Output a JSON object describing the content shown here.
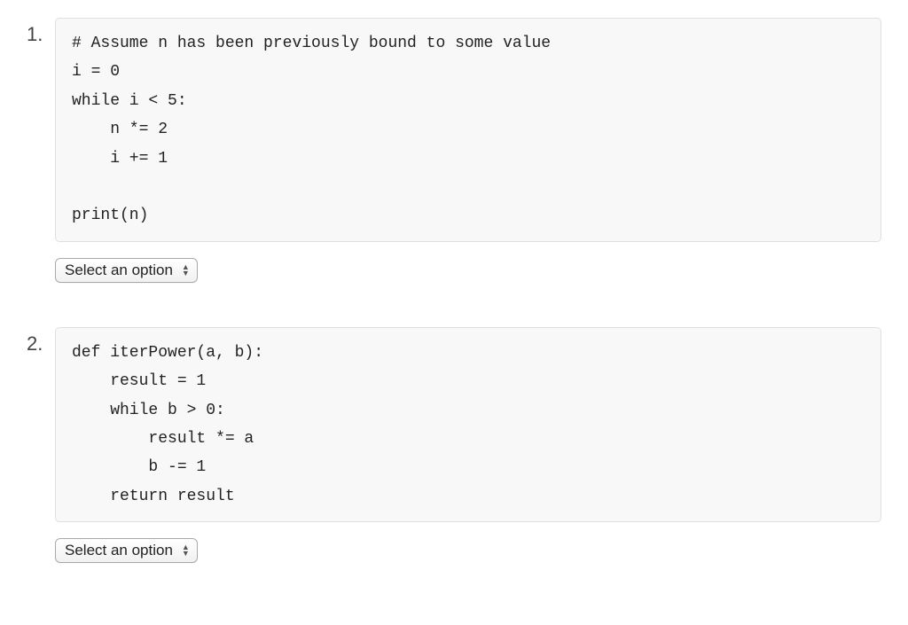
{
  "questions": [
    {
      "number": "1.",
      "code": "# Assume n has been previously bound to some value\ni = 0\nwhile i < 5:\n    n *= 2\n    i += 1\n\nprint(n)",
      "select_label": "Select an option"
    },
    {
      "number": "2.",
      "code": "def iterPower(a, b):\n    result = 1\n    while b > 0:\n        result *= a\n        b -= 1\n    return result",
      "select_label": "Select an option"
    }
  ],
  "styling": {
    "code_background": "#f8f8f8",
    "code_border": "#dfdfdf",
    "code_font": "Courier New",
    "code_fontsize": 18,
    "number_fontsize": 22,
    "select_fontsize": 17,
    "body_background": "#ffffff",
    "text_color": "#333"
  }
}
